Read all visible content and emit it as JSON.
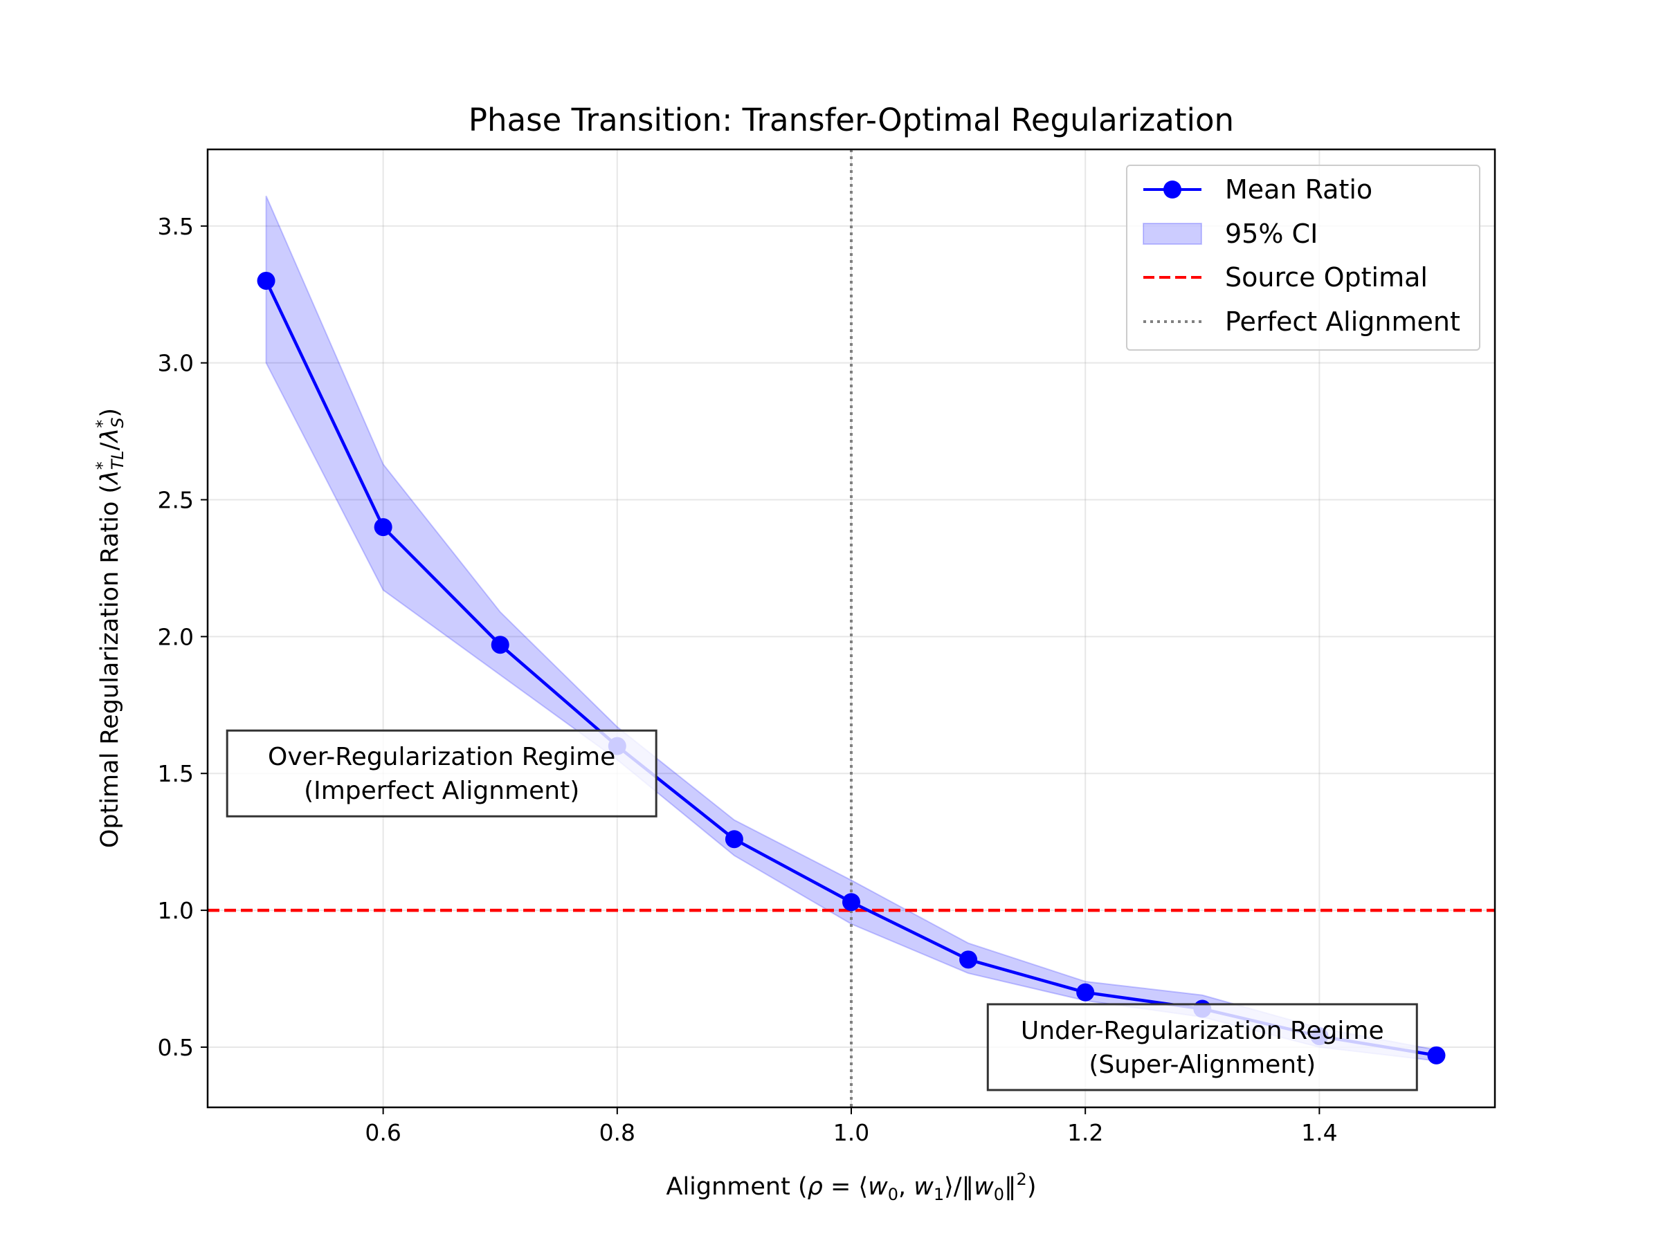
{
  "chart_data": {
    "type": "line",
    "title": "Phase Transition: Transfer-Optimal Regularization",
    "xlabel": {
      "prefix": "Alignment (",
      "rho": "ρ",
      "eq": " = ",
      "open": "⟨",
      "w": "w",
      "sub0": "0",
      "comma": ", ",
      "sub1": "1",
      "close": "⟩/‖",
      "norm_close": "‖",
      "sup2": "2",
      "suffix": ")"
    },
    "ylabel": {
      "prefix": "Optimal Regularization Ratio (",
      "lambda": "λ",
      "star": "*",
      "sub_tl": "TL",
      "slash": "/",
      "sub_s": "S",
      "suffix": ")"
    },
    "xlim": [
      0.45,
      1.55
    ],
    "ylim": [
      0.28,
      3.78
    ],
    "xticks": [
      "0.6",
      "0.8",
      "1.0",
      "1.2",
      "1.4"
    ],
    "yticks": [
      "0.5",
      "1.0",
      "1.5",
      "2.0",
      "2.5",
      "3.0",
      "3.5"
    ],
    "grid": true,
    "series": [
      {
        "name": "Mean Ratio",
        "x": [
          0.5,
          0.6,
          0.7,
          0.8,
          0.9,
          1.0,
          1.1,
          1.2,
          1.3,
          1.4,
          1.5
        ],
        "y": [
          3.3,
          2.4,
          1.97,
          1.6,
          1.26,
          1.03,
          0.82,
          0.7,
          0.64,
          0.54,
          0.47
        ],
        "color": "#0000ff"
      }
    ],
    "ci": {
      "name": "95% CI",
      "x": [
        0.5,
        0.6,
        0.7,
        0.8,
        0.9,
        1.0,
        1.1,
        1.2,
        1.3,
        1.4,
        1.5
      ],
      "lower": [
        3.0,
        2.17,
        1.86,
        1.55,
        1.2,
        0.95,
        0.77,
        0.67,
        0.61,
        0.5,
        0.45
      ],
      "upper": [
        3.61,
        2.63,
        2.09,
        1.67,
        1.33,
        1.11,
        0.88,
        0.74,
        0.69,
        0.57,
        0.49
      ],
      "color": "#0000ff"
    },
    "hlines": [
      {
        "name": "Source Optimal",
        "y": 1.0,
        "color": "#ff0000",
        "style": "dashed"
      }
    ],
    "vlines": [
      {
        "name": "Perfect Alignment",
        "x": 1.0,
        "color": "#808080",
        "style": "dotted"
      }
    ],
    "legend_position": "top-right",
    "annotations": [
      {
        "lines": [
          "Over-Regularization Regime",
          "(Imperfect Alignment)"
        ],
        "x": 0.65,
        "y": 1.5
      },
      {
        "lines": [
          "Under-Regularization Regime",
          "(Super-Alignment)"
        ],
        "x": 1.3,
        "y": 0.5
      }
    ]
  }
}
